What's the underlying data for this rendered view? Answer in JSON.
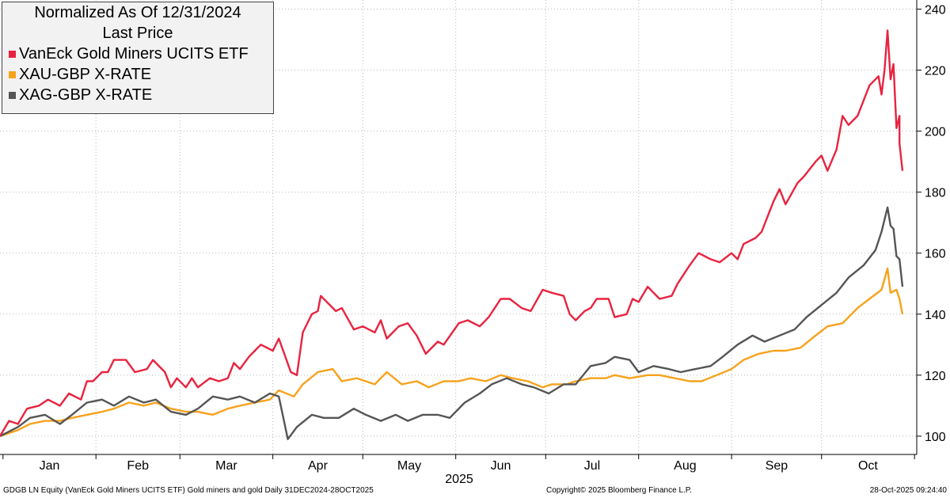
{
  "chart_data": {
    "type": "line",
    "title": "Normalized As Of 12/31/2024",
    "subtitle": "Last Price",
    "xlabel": "2025",
    "x_tick_labels": [
      "Jan",
      "Feb",
      "Mar",
      "Apr",
      "May",
      "Jun",
      "Jul",
      "Aug",
      "Sep",
      "Oct"
    ],
    "y_tick_labels": [
      "100",
      "120",
      "140",
      "160",
      "180",
      "200",
      "220",
      "240"
    ],
    "ylim": [
      94,
      243
    ],
    "xlim": [
      "2024-12-31",
      "2025-10-28"
    ],
    "grid": true,
    "legend_position": "top-left",
    "series": [
      {
        "name": "VanEck Gold Miners UCITS ETF",
        "color": "#e8233f",
        "points": [
          [
            "2024-12-31",
            100
          ],
          [
            "2025-01-03",
            105
          ],
          [
            "2025-01-06",
            104
          ],
          [
            "2025-01-09",
            109
          ],
          [
            "2025-01-13",
            110
          ],
          [
            "2025-01-16",
            112
          ],
          [
            "2025-01-20",
            110
          ],
          [
            "2025-01-23",
            114
          ],
          [
            "2025-01-27",
            112
          ],
          [
            "2025-01-29",
            118
          ],
          [
            "2025-01-31",
            118
          ],
          [
            "2025-02-03",
            121
          ],
          [
            "2025-02-05",
            121
          ],
          [
            "2025-02-07",
            125
          ],
          [
            "2025-02-11",
            125
          ],
          [
            "2025-02-14",
            121
          ],
          [
            "2025-02-18",
            122
          ],
          [
            "2025-02-20",
            125
          ],
          [
            "2025-02-24",
            121
          ],
          [
            "2025-02-26",
            116
          ],
          [
            "2025-02-28",
            119
          ],
          [
            "2025-03-03",
            116
          ],
          [
            "2025-03-05",
            119
          ],
          [
            "2025-03-07",
            116
          ],
          [
            "2025-03-11",
            119
          ],
          [
            "2025-03-14",
            118
          ],
          [
            "2025-03-17",
            119
          ],
          [
            "2025-03-19",
            124
          ],
          [
            "2025-03-21",
            122
          ],
          [
            "2025-03-24",
            126
          ],
          [
            "2025-03-26",
            128
          ],
          [
            "2025-03-28",
            130
          ],
          [
            "2025-04-01",
            128
          ],
          [
            "2025-04-03",
            132
          ],
          [
            "2025-04-07",
            121
          ],
          [
            "2025-04-09",
            120
          ],
          [
            "2025-04-11",
            134
          ],
          [
            "2025-04-14",
            140
          ],
          [
            "2025-04-16",
            141
          ],
          [
            "2025-04-17",
            146
          ],
          [
            "2025-04-22",
            141
          ],
          [
            "2025-04-24",
            142
          ],
          [
            "2025-04-28",
            135
          ],
          [
            "2025-05-01",
            136
          ],
          [
            "2025-05-05",
            134
          ],
          [
            "2025-05-07",
            138
          ],
          [
            "2025-05-09",
            132
          ],
          [
            "2025-05-13",
            136
          ],
          [
            "2025-05-16",
            137
          ],
          [
            "2025-05-19",
            133
          ],
          [
            "2025-05-22",
            127
          ],
          [
            "2025-05-26",
            131
          ],
          [
            "2025-05-28",
            130
          ],
          [
            "2025-06-02",
            137
          ],
          [
            "2025-06-05",
            138
          ],
          [
            "2025-06-09",
            136
          ],
          [
            "2025-06-12",
            139
          ],
          [
            "2025-06-16",
            145
          ],
          [
            "2025-06-19",
            145
          ],
          [
            "2025-06-23",
            142
          ],
          [
            "2025-06-26",
            141
          ],
          [
            "2025-06-30",
            148
          ],
          [
            "2025-07-03",
            147
          ],
          [
            "2025-07-07",
            146
          ],
          [
            "2025-07-09",
            140
          ],
          [
            "2025-07-11",
            138
          ],
          [
            "2025-07-14",
            141
          ],
          [
            "2025-07-16",
            142
          ],
          [
            "2025-07-18",
            145
          ],
          [
            "2025-07-22",
            145
          ],
          [
            "2025-07-24",
            139
          ],
          [
            "2025-07-28",
            140
          ],
          [
            "2025-07-30",
            145
          ],
          [
            "2025-08-01",
            144
          ],
          [
            "2025-08-04",
            149
          ],
          [
            "2025-08-06",
            147
          ],
          [
            "2025-08-08",
            145
          ],
          [
            "2025-08-12",
            146
          ],
          [
            "2025-08-14",
            150
          ],
          [
            "2025-08-18",
            156
          ],
          [
            "2025-08-21",
            160
          ],
          [
            "2025-08-25",
            158
          ],
          [
            "2025-08-28",
            157
          ],
          [
            "2025-09-01",
            160
          ],
          [
            "2025-09-03",
            158
          ],
          [
            "2025-09-05",
            163
          ],
          [
            "2025-09-09",
            165
          ],
          [
            "2025-09-11",
            167
          ],
          [
            "2025-09-15",
            177
          ],
          [
            "2025-09-17",
            181
          ],
          [
            "2025-09-19",
            176
          ],
          [
            "2025-09-23",
            183
          ],
          [
            "2025-09-25",
            185
          ],
          [
            "2025-09-29",
            190
          ],
          [
            "2025-10-01",
            192
          ],
          [
            "2025-10-03",
            187
          ],
          [
            "2025-10-06",
            194
          ],
          [
            "2025-10-08",
            205
          ],
          [
            "2025-10-10",
            202
          ],
          [
            "2025-10-13",
            205
          ],
          [
            "2025-10-15",
            210
          ],
          [
            "2025-10-17",
            215
          ],
          [
            "2025-10-20",
            218
          ],
          [
            "2025-10-21",
            212
          ],
          [
            "2025-10-22",
            220
          ],
          [
            "2025-10-23",
            233
          ],
          [
            "2025-10-24",
            217
          ],
          [
            "2025-10-25",
            222
          ],
          [
            "2025-10-26",
            201
          ],
          [
            "2025-10-27",
            205
          ],
          [
            "2025-10-27",
            196
          ],
          [
            "2025-10-28",
            187
          ]
        ]
      },
      {
        "name": "XAU-GBP X-RATE",
        "color": "#f7a21b",
        "points": [
          [
            "2024-12-31",
            100
          ],
          [
            "2025-01-06",
            102
          ],
          [
            "2025-01-10",
            104
          ],
          [
            "2025-01-15",
            105
          ],
          [
            "2025-01-20",
            105
          ],
          [
            "2025-01-24",
            106
          ],
          [
            "2025-01-29",
            107
          ],
          [
            "2025-02-03",
            108
          ],
          [
            "2025-02-07",
            109
          ],
          [
            "2025-02-12",
            111
          ],
          [
            "2025-02-17",
            110
          ],
          [
            "2025-02-21",
            111
          ],
          [
            "2025-02-26",
            109
          ],
          [
            "2025-03-03",
            108
          ],
          [
            "2025-03-07",
            108
          ],
          [
            "2025-03-12",
            107
          ],
          [
            "2025-03-17",
            109
          ],
          [
            "2025-03-21",
            110
          ],
          [
            "2025-03-26",
            111
          ],
          [
            "2025-03-31",
            112
          ],
          [
            "2025-04-03",
            115
          ],
          [
            "2025-04-08",
            113
          ],
          [
            "2025-04-11",
            117
          ],
          [
            "2025-04-16",
            121
          ],
          [
            "2025-04-21",
            122
          ],
          [
            "2025-04-24",
            118
          ],
          [
            "2025-04-29",
            119
          ],
          [
            "2025-05-05",
            117
          ],
          [
            "2025-05-09",
            121
          ],
          [
            "2025-05-14",
            117
          ],
          [
            "2025-05-19",
            118
          ],
          [
            "2025-05-23",
            116
          ],
          [
            "2025-05-28",
            118
          ],
          [
            "2025-06-02",
            118
          ],
          [
            "2025-06-06",
            119
          ],
          [
            "2025-06-11",
            118
          ],
          [
            "2025-06-16",
            120
          ],
          [
            "2025-06-20",
            119
          ],
          [
            "2025-06-25",
            118
          ],
          [
            "2025-06-30",
            116
          ],
          [
            "2025-07-03",
            117
          ],
          [
            "2025-07-08",
            117
          ],
          [
            "2025-07-11",
            118
          ],
          [
            "2025-07-16",
            119
          ],
          [
            "2025-07-21",
            119
          ],
          [
            "2025-07-24",
            120
          ],
          [
            "2025-07-29",
            119
          ],
          [
            "2025-08-04",
            120
          ],
          [
            "2025-08-08",
            120
          ],
          [
            "2025-08-13",
            119
          ],
          [
            "2025-08-18",
            118
          ],
          [
            "2025-08-22",
            118
          ],
          [
            "2025-08-27",
            120
          ],
          [
            "2025-09-01",
            122
          ],
          [
            "2025-09-05",
            125
          ],
          [
            "2025-09-10",
            127
          ],
          [
            "2025-09-15",
            128
          ],
          [
            "2025-09-19",
            128
          ],
          [
            "2025-09-24",
            129
          ],
          [
            "2025-09-29",
            133
          ],
          [
            "2025-10-03",
            136
          ],
          [
            "2025-10-08",
            137
          ],
          [
            "2025-10-13",
            142
          ],
          [
            "2025-10-17",
            145
          ],
          [
            "2025-10-21",
            148
          ],
          [
            "2025-10-23",
            155
          ],
          [
            "2025-10-24",
            147
          ],
          [
            "2025-10-26",
            148
          ],
          [
            "2025-10-27",
            145
          ],
          [
            "2025-10-28",
            140
          ]
        ]
      },
      {
        "name": "XAG-GBP X-RATE",
        "color": "#555555",
        "points": [
          [
            "2024-12-31",
            100
          ],
          [
            "2025-01-06",
            103
          ],
          [
            "2025-01-10",
            106
          ],
          [
            "2025-01-15",
            107
          ],
          [
            "2025-01-20",
            104
          ],
          [
            "2025-01-24",
            107
          ],
          [
            "2025-01-29",
            111
          ],
          [
            "2025-02-03",
            112
          ],
          [
            "2025-02-07",
            110
          ],
          [
            "2025-02-12",
            113
          ],
          [
            "2025-02-17",
            111
          ],
          [
            "2025-02-21",
            112
          ],
          [
            "2025-02-26",
            108
          ],
          [
            "2025-03-03",
            107
          ],
          [
            "2025-03-07",
            109
          ],
          [
            "2025-03-12",
            113
          ],
          [
            "2025-03-17",
            112
          ],
          [
            "2025-03-21",
            113
          ],
          [
            "2025-03-26",
            111
          ],
          [
            "2025-03-31",
            114
          ],
          [
            "2025-04-03",
            113
          ],
          [
            "2025-04-06",
            99
          ],
          [
            "2025-04-09",
            103
          ],
          [
            "2025-04-14",
            107
          ],
          [
            "2025-04-18",
            106
          ],
          [
            "2025-04-23",
            106
          ],
          [
            "2025-04-28",
            109
          ],
          [
            "2025-05-02",
            107
          ],
          [
            "2025-05-07",
            105
          ],
          [
            "2025-05-12",
            107
          ],
          [
            "2025-05-16",
            105
          ],
          [
            "2025-05-21",
            107
          ],
          [
            "2025-05-26",
            107
          ],
          [
            "2025-05-30",
            106
          ],
          [
            "2025-06-04",
            111
          ],
          [
            "2025-06-09",
            114
          ],
          [
            "2025-06-13",
            117
          ],
          [
            "2025-06-18",
            119
          ],
          [
            "2025-06-23",
            117
          ],
          [
            "2025-06-27",
            116
          ],
          [
            "2025-07-02",
            114
          ],
          [
            "2025-07-07",
            117
          ],
          [
            "2025-07-11",
            117
          ],
          [
            "2025-07-16",
            123
          ],
          [
            "2025-07-21",
            124
          ],
          [
            "2025-07-24",
            126
          ],
          [
            "2025-07-29",
            125
          ],
          [
            "2025-08-01",
            121
          ],
          [
            "2025-08-06",
            123
          ],
          [
            "2025-08-11",
            122
          ],
          [
            "2025-08-15",
            121
          ],
          [
            "2025-08-20",
            122
          ],
          [
            "2025-08-25",
            123
          ],
          [
            "2025-08-29",
            126
          ],
          [
            "2025-09-03",
            130
          ],
          [
            "2025-09-08",
            133
          ],
          [
            "2025-09-12",
            131
          ],
          [
            "2025-09-17",
            133
          ],
          [
            "2025-09-22",
            135
          ],
          [
            "2025-09-26",
            139
          ],
          [
            "2025-10-01",
            143
          ],
          [
            "2025-10-06",
            147
          ],
          [
            "2025-10-10",
            152
          ],
          [
            "2025-10-15",
            156
          ],
          [
            "2025-10-19",
            161
          ],
          [
            "2025-10-21",
            167
          ],
          [
            "2025-10-23",
            175
          ],
          [
            "2025-10-24",
            169
          ],
          [
            "2025-10-25",
            168
          ],
          [
            "2025-10-26",
            159
          ],
          [
            "2025-10-27",
            158
          ],
          [
            "2025-10-28",
            149
          ]
        ]
      }
    ]
  },
  "footer": {
    "left": "GDGB LN Equity (VanEck Gold Miners UCITS ETF) Gold miners and gold Daily 31DEC2024-28OCT2025",
    "center": "Copyright© 2025 Bloomberg Finance L.P.",
    "right": "28-Oct-2025 09:24:40"
  }
}
